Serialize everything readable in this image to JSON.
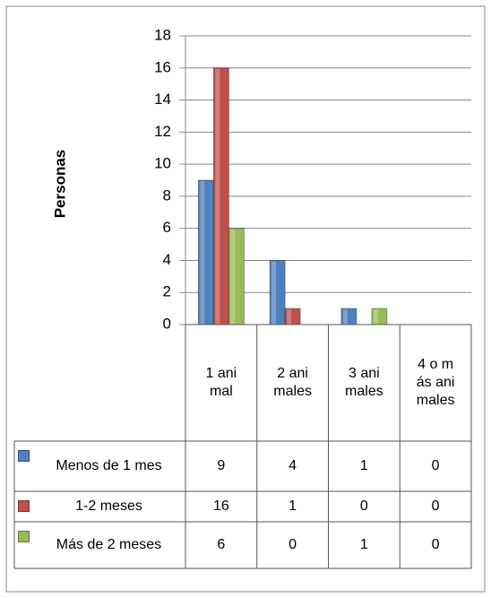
{
  "chart_data": {
    "type": "bar",
    "y_label": "Personas",
    "categories": [
      "1 animal",
      "2 animales",
      "3 animales",
      "4 o más animales"
    ],
    "series": [
      {
        "name": "Menos de 1 mes",
        "color": "#4f81bd",
        "values": [
          9,
          4,
          1,
          0
        ]
      },
      {
        "name": "1-2 meses",
        "color": "#c0504d",
        "values": [
          16,
          1,
          0,
          0
        ]
      },
      {
        "name": "Más de 2 meses",
        "color": "#9bbb59",
        "values": [
          6,
          0,
          1,
          0
        ]
      }
    ],
    "ylim": [
      0,
      18
    ],
    "yticks": [
      0,
      2,
      4,
      6,
      8,
      10,
      12,
      14,
      16,
      18
    ],
    "grid": true,
    "data_table": true
  }
}
